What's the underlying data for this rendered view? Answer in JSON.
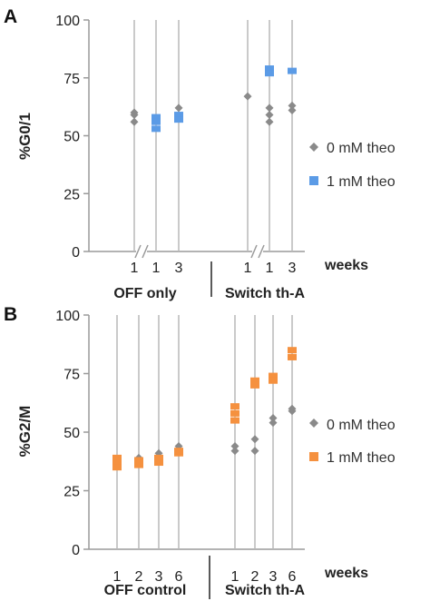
{
  "chart_data": [
    {
      "type": "scatter",
      "panel_label": "A",
      "ylabel": "%G0/1",
      "ylim": [
        0,
        100
      ],
      "yticks": [
        0,
        25,
        50,
        75,
        100
      ],
      "xunit_label": "weeks",
      "columns": [
        {
          "tick": "1",
          "group": "OFF only"
        },
        {
          "tick": "1",
          "group": "OFF only"
        },
        {
          "tick": "3",
          "group": "OFF only"
        },
        {
          "tick": "1",
          "group": "Switch th-A"
        },
        {
          "tick": "1",
          "group": "Switch th-A"
        },
        {
          "tick": "3",
          "group": "Switch th-A"
        }
      ],
      "groups": [
        "OFF only",
        "Switch th-A"
      ],
      "series": [
        {
          "name": "0 mM theo",
          "color": "#8a8a8a",
          "marker": "diamond",
          "points": [
            [
              0,
              60
            ],
            [
              0,
              59
            ],
            [
              0,
              56
            ],
            [
              2,
              62
            ],
            [
              3,
              67
            ],
            [
              4,
              62
            ],
            [
              4,
              59
            ],
            [
              4,
              56
            ],
            [
              5,
              63
            ],
            [
              5,
              61
            ]
          ]
        },
        {
          "name": "1 mM theo",
          "color": "#5b9be6",
          "marker": "square",
          "points": [
            [
              1,
              58
            ],
            [
              1,
              56
            ],
            [
              1,
              53
            ],
            [
              2,
              59
            ],
            [
              2,
              57
            ],
            [
              4,
              79
            ],
            [
              4,
              77
            ],
            [
              5,
              78
            ]
          ]
        }
      ]
    },
    {
      "type": "scatter",
      "panel_label": "B",
      "ylabel": "%G2/M",
      "ylim": [
        0,
        100
      ],
      "yticks": [
        0,
        25,
        50,
        75,
        100
      ],
      "xunit_label": "weeks",
      "columns": [
        {
          "tick": "1",
          "group": "OFF control"
        },
        {
          "tick": "2",
          "group": "OFF control"
        },
        {
          "tick": "3",
          "group": "OFF control"
        },
        {
          "tick": "6",
          "group": "OFF control"
        },
        {
          "tick": "1",
          "group": "Switch th-A"
        },
        {
          "tick": "2",
          "group": "Switch th-A"
        },
        {
          "tick": "3",
          "group": "Switch th-A"
        },
        {
          "tick": "6",
          "group": "Switch th-A"
        }
      ],
      "groups": [
        "OFF control",
        "Switch th-A"
      ],
      "series": [
        {
          "name": "0 mM theo",
          "color": "#8a8a8a",
          "marker": "diamond",
          "points": [
            [
              0,
              38
            ],
            [
              1,
              39
            ],
            [
              2,
              41
            ],
            [
              3,
              44
            ],
            [
              4,
              44
            ],
            [
              4,
              42
            ],
            [
              5,
              47
            ],
            [
              5,
              42
            ],
            [
              6,
              56
            ],
            [
              6,
              54
            ],
            [
              7,
              60
            ],
            [
              7,
              59
            ]
          ]
        },
        {
          "name": "1 mM theo",
          "color": "#f5913f",
          "marker": "square",
          "points": [
            [
              0,
              39
            ],
            [
              0,
              37
            ],
            [
              0,
              35
            ],
            [
              1,
              38
            ],
            [
              1,
              36
            ],
            [
              2,
              39
            ],
            [
              2,
              37
            ],
            [
              3,
              42
            ],
            [
              3,
              41
            ],
            [
              4,
              61
            ],
            [
              4,
              58
            ],
            [
              4,
              55
            ],
            [
              5,
              72
            ],
            [
              5,
              70
            ],
            [
              6,
              74
            ],
            [
              6,
              72
            ],
            [
              7,
              85
            ],
            [
              7,
              82
            ]
          ]
        }
      ]
    }
  ]
}
